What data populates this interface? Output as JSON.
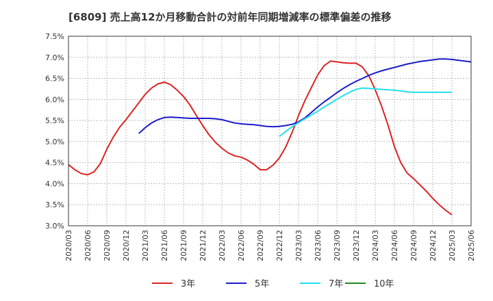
{
  "chart_data": {
    "type": "line",
    "title": "[6809]  売上高12か月移動合計の対前年同期増減率の標準偏差の推移",
    "ylim": [
      3.0,
      7.5
    ],
    "y_ticks": [
      "3.0%",
      "3.5%",
      "4.0%",
      "4.5%",
      "5.0%",
      "5.5%",
      "6.0%",
      "6.5%",
      "7.0%",
      "7.5%"
    ],
    "x_start": "2020/03",
    "x_end": "2025/06",
    "x_ticks": [
      "2020/03",
      "2020/06",
      "2020/09",
      "2020/12",
      "2021/03",
      "2021/06",
      "2021/09",
      "2021/12",
      "2022/03",
      "2022/06",
      "2022/09",
      "2022/12",
      "2023/03",
      "2023/06",
      "2023/09",
      "2023/12",
      "2024/03",
      "2024/06",
      "2024/09",
      "2024/12",
      "2025/03",
      "2025/06"
    ],
    "grid": true,
    "legend_position": "bottom",
    "series": [
      {
        "name": "3年",
        "color": "#dd2222",
        "start": "2020/03",
        "values": [
          4.45,
          4.33,
          4.24,
          4.21,
          4.28,
          4.48,
          4.82,
          5.1,
          5.34,
          5.52,
          5.72,
          5.92,
          6.12,
          6.27,
          6.37,
          6.41,
          6.35,
          6.22,
          6.07,
          5.87,
          5.62,
          5.38,
          5.16,
          4.98,
          4.84,
          4.73,
          4.66,
          4.63,
          4.56,
          4.46,
          4.33,
          4.33,
          4.44,
          4.61,
          4.87,
          5.22,
          5.62,
          5.97,
          6.28,
          6.58,
          6.8,
          6.91,
          6.89,
          6.87,
          6.86,
          6.86,
          6.77,
          6.56,
          6.23,
          5.84,
          5.39,
          4.88,
          4.5,
          4.25,
          4.12,
          3.97,
          3.82,
          3.65,
          3.5,
          3.37,
          3.26
        ]
      },
      {
        "name": "5年",
        "color": "#1a1acc",
        "start": "2021/02",
        "values": [
          5.19,
          5.33,
          5.44,
          5.52,
          5.57,
          5.58,
          5.57,
          5.56,
          5.55,
          5.55,
          5.55,
          5.55,
          5.54,
          5.52,
          5.48,
          5.44,
          5.42,
          5.41,
          5.4,
          5.38,
          5.36,
          5.35,
          5.36,
          5.38,
          5.41,
          5.47,
          5.56,
          5.69,
          5.82,
          5.94,
          6.05,
          6.16,
          6.26,
          6.35,
          6.43,
          6.5,
          6.57,
          6.63,
          6.68,
          6.72,
          6.76,
          6.8,
          6.84,
          6.87,
          6.9,
          6.92,
          6.94,
          6.96,
          6.96,
          6.95,
          6.93,
          6.91,
          6.89
        ]
      },
      {
        "name": "7年",
        "color": "#22e0ee",
        "start": "2022/12",
        "values": [
          5.12,
          5.24,
          5.35,
          5.45,
          5.54,
          5.63,
          5.72,
          5.82,
          5.91,
          6.0,
          6.09,
          6.17,
          6.24,
          6.27,
          6.26,
          6.25,
          6.24,
          6.23,
          6.22,
          6.2,
          6.18,
          6.17,
          6.17,
          6.17,
          6.17,
          6.17,
          6.17,
          6.17
        ]
      },
      {
        "name": "10年",
        "color": "#228822",
        "start": "2025/03",
        "values": []
      }
    ]
  }
}
